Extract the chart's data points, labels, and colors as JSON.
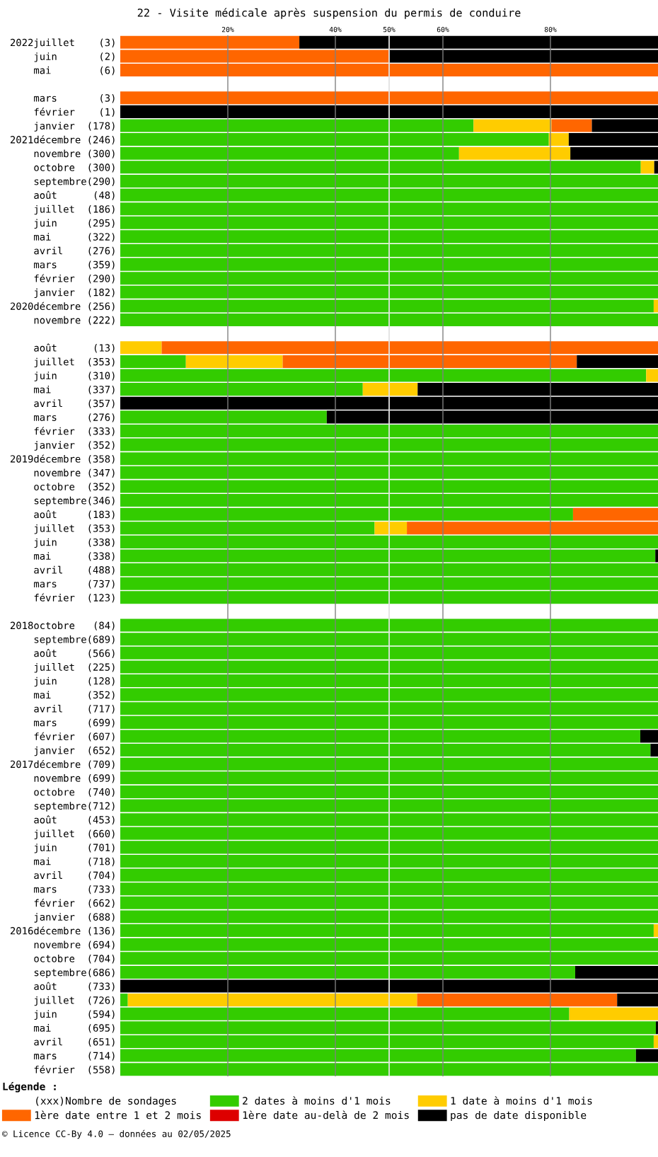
{
  "chart_data": {
    "type": "bar",
    "orientation": "horizontal",
    "stacked": true,
    "title": "22 - Visite médicale après suspension du permis de conduire",
    "categories": [
      "2022juillet    (3)",
      "juin       (2)",
      "mai        (6)",
      null,
      "mars       (3)",
      "février    (1)",
      "janvier  (178)",
      "2021décembre (246)",
      "novembre (300)",
      "octobre  (300)",
      "septembre(290)",
      "août      (48)",
      "juillet  (186)",
      "juin     (295)",
      "mai      (322)",
      "avril    (276)",
      "mars     (359)",
      "février  (290)",
      "janvier  (182)",
      "2020décembre (256)",
      "novembre (222)",
      null,
      "août      (13)",
      "juillet  (353)",
      "juin     (310)",
      "mai      (337)",
      "avril    (357)",
      "mars     (276)",
      "février  (333)",
      "janvier  (352)",
      "2019décembre (358)",
      "novembre (347)",
      "octobre  (352)",
      "septembre(346)",
      "août     (183)",
      "juillet  (353)",
      "juin     (338)",
      "mai      (338)",
      "avril    (488)",
      "mars     (737)",
      "février  (123)",
      null,
      "2018octobre   (84)",
      "septembre(689)",
      "août     (566)",
      "juillet  (225)",
      "juin     (128)",
      "mai      (352)",
      "avril    (717)",
      "mars     (699)",
      "février  (607)",
      "janvier  (652)",
      "2017décembre (709)",
      "novembre (699)",
      "octobre  (740)",
      "septembre(712)",
      "août     (453)",
      "juillet  (660)",
      "juin     (701)",
      "mai      (718)",
      "avril    (704)",
      "mars     (733)",
      "février  (662)",
      "janvier  (688)",
      "2016décembre (136)",
      "novembre (694)",
      "octobre  (704)",
      "septembre(686)",
      "août     (733)",
      "juillet  (726)",
      "juin     (594)",
      "mai      (695)",
      "avril    (651)",
      "mars     (714)",
      "février  (558)"
    ],
    "series": [
      {
        "name": "2 dates à moins d'1 mois",
        "color": "#33cc00",
        "values": [
          0,
          0,
          0,
          null,
          0,
          0,
          65.7,
          79.7,
          63.0,
          96.8,
          100,
          100,
          100,
          100,
          100,
          100,
          100,
          100,
          100,
          99.2,
          100,
          null,
          0,
          12.2,
          97.8,
          45.1,
          0,
          38.4,
          100,
          100,
          100,
          100,
          100,
          100,
          84.2,
          47.3,
          100,
          99.5,
          100,
          100,
          100,
          null,
          100,
          100,
          100,
          100,
          100,
          100,
          100,
          100,
          96.7,
          98.6,
          100,
          100,
          100,
          100,
          100,
          100,
          100,
          100,
          100,
          100,
          100,
          100,
          99.2,
          100,
          100,
          84.6,
          0,
          1.4,
          83.5,
          99.6,
          99.2,
          95.9,
          100
        ]
      },
      {
        "name": "1 date à moins d'1 mois",
        "color": "#ffcc00",
        "values": [
          0,
          0,
          0,
          null,
          0,
          0,
          14.5,
          3.7,
          20.7,
          2.5,
          0,
          0,
          0,
          0,
          0,
          0,
          0,
          0,
          0,
          0.8,
          0,
          null,
          7.7,
          18.0,
          2.2,
          10.2,
          0,
          0,
          0,
          0,
          0,
          0,
          0,
          0,
          0,
          6.0,
          0,
          0,
          0,
          0,
          0,
          null,
          0,
          0,
          0,
          0,
          0,
          0,
          0,
          0,
          0,
          0,
          0,
          0,
          0,
          0,
          0,
          0,
          0,
          0,
          0,
          0,
          0,
          0,
          0.8,
          0,
          0,
          0,
          0,
          53.8,
          16.5,
          0,
          0.8,
          0,
          0
        ]
      },
      {
        "name": "1ère date entre 1 et 2 mois",
        "color": "#ff6600",
        "values": [
          33.3,
          50,
          100,
          null,
          100,
          0,
          7.5,
          0,
          0,
          0,
          0,
          0,
          0,
          0,
          0,
          0,
          0,
          0,
          0,
          0,
          0,
          null,
          92.3,
          54.7,
          0,
          0,
          0,
          0,
          0,
          0,
          0,
          0,
          0,
          0,
          15.8,
          46.7,
          0,
          0,
          0,
          0,
          0,
          null,
          0,
          0,
          0,
          0,
          0,
          0,
          0,
          0,
          0,
          0,
          0,
          0,
          0,
          0,
          0,
          0,
          0,
          0,
          0,
          0,
          0,
          0,
          0,
          0,
          0,
          0,
          0,
          37.2,
          0,
          0,
          0,
          0,
          0
        ]
      },
      {
        "name": "1ère date au-delà de 2 mois",
        "color": "#dd0000",
        "values": [
          0,
          0,
          0,
          null,
          0,
          0,
          0,
          0,
          0,
          0,
          0,
          0,
          0,
          0,
          0,
          0,
          0,
          0,
          0,
          0,
          0,
          null,
          0,
          0,
          0,
          0,
          0,
          0,
          0,
          0,
          0,
          0,
          0,
          0,
          0,
          0,
          0,
          0,
          0,
          0,
          0,
          null,
          0,
          0,
          0,
          0,
          0,
          0,
          0,
          0,
          0,
          0,
          0,
          0,
          0,
          0,
          0,
          0,
          0,
          0,
          0,
          0,
          0,
          0,
          0,
          0,
          0,
          0,
          0,
          0,
          0,
          0,
          0,
          0,
          0
        ]
      },
      {
        "name": "pas de date disponible",
        "color": "#000000",
        "values": [
          66.7,
          50,
          0,
          null,
          0,
          100,
          12.3,
          16.6,
          16.3,
          0.7,
          0,
          0,
          0,
          0,
          0,
          0,
          0,
          0,
          0,
          0,
          0,
          null,
          0,
          15.1,
          0,
          44.7,
          100,
          61.6,
          0,
          0,
          0,
          0,
          0,
          0,
          0,
          0,
          0,
          0.5,
          0,
          0,
          0,
          null,
          0,
          0,
          0,
          0,
          0,
          0,
          0,
          0,
          3.3,
          1.4,
          0,
          0,
          0,
          0,
          0,
          0,
          0,
          0,
          0,
          0,
          0,
          0,
          0,
          0,
          0,
          15.4,
          100,
          7.6,
          0,
          0.4,
          0,
          4.1,
          0
        ]
      }
    ],
    "xlim": [
      0,
      100
    ],
    "xticks": [
      {
        "value": 20,
        "label": "20%"
      },
      {
        "value": 40,
        "label": "40%"
      },
      {
        "value": 50,
        "label": "50%"
      },
      {
        "value": 60,
        "label": "60%"
      },
      {
        "value": 80,
        "label": "80%"
      }
    ],
    "grid": "x",
    "ref_lines": [
      {
        "axis": "x",
        "value": 50,
        "color": "#ffffff"
      }
    ],
    "legend": "bottom",
    "legend_title": "Légende :",
    "annotations": [
      "(xxx)Nombre de sondages",
      "© Licence CC-By 4.0 — données au 02/05/2025"
    ]
  }
}
